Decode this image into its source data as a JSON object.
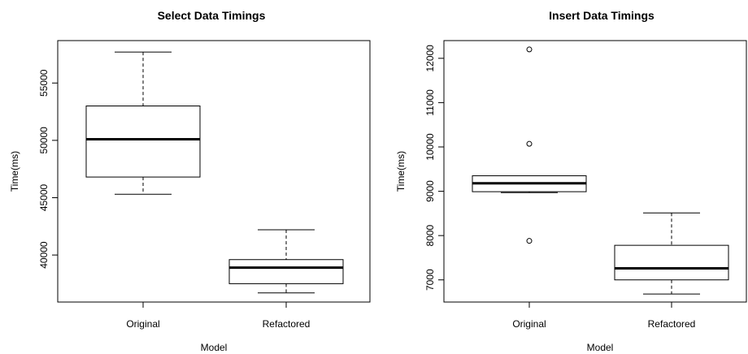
{
  "chart_data": [
    {
      "type": "boxplot",
      "title": "Select Data Timings",
      "xlabel": "Model",
      "ylabel": "Time(ms)",
      "ylim": [
        35900,
        58700
      ],
      "yticks": [
        40000,
        45000,
        50000,
        55000
      ],
      "categories": [
        "Original",
        "Refactored"
      ],
      "boxes": [
        {
          "category": "Original",
          "min": 45300,
          "q1": 46800,
          "median": 50100,
          "q3": 53000,
          "max": 57700,
          "outliers": []
        },
        {
          "category": "Refactored",
          "min": 36700,
          "q1": 37500,
          "median": 38900,
          "q3": 39600,
          "max": 42200,
          "outliers": []
        }
      ]
    },
    {
      "type": "boxplot",
      "title": "Insert Data Timings",
      "xlabel": "Model",
      "ylabel": "Time(ms)",
      "ylim": [
        6500,
        12400
      ],
      "yticks": [
        7000,
        8000,
        9000,
        10000,
        11000,
        12000
      ],
      "categories": [
        "Original",
        "Refactored"
      ],
      "boxes": [
        {
          "category": "Original",
          "min": 8970,
          "q1": 8990,
          "median": 9180,
          "q3": 9350,
          "max": 9350,
          "outliers": [
            12200,
            10070,
            7880
          ]
        },
        {
          "category": "Refactored",
          "min": 6680,
          "q1": 7000,
          "median": 7260,
          "q3": 7780,
          "max": 8510,
          "outliers": []
        }
      ]
    }
  ]
}
